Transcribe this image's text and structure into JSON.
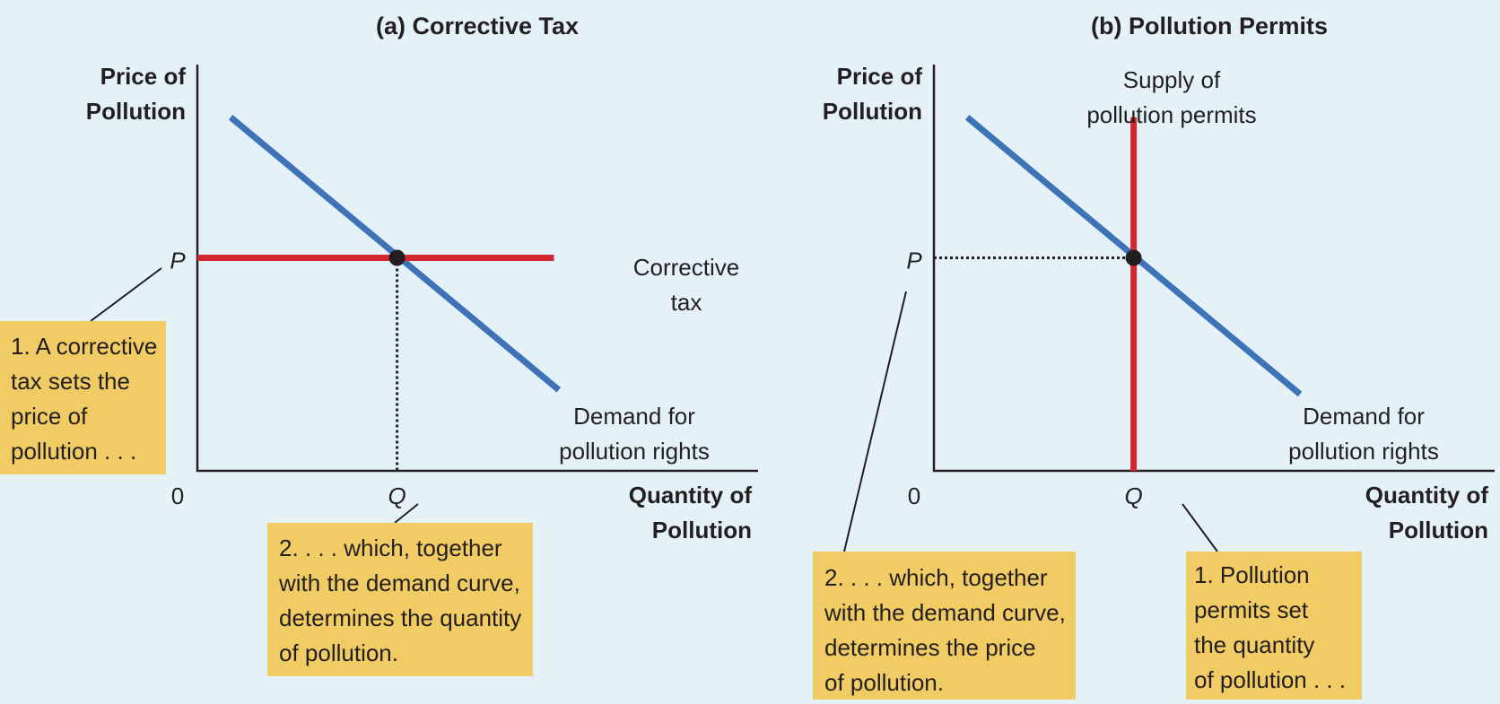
{
  "chart_data": [
    {
      "type": "line",
      "title": "(a) Corrective Tax",
      "ylabel": [
        "Price of",
        "Pollution"
      ],
      "xlabel": [
        "Quantity of",
        "Pollution"
      ],
      "origin_label": "0",
      "x_tick_label": "Q",
      "y_tick_label": "P",
      "xlim": [
        0,
        100
      ],
      "ylim": [
        0,
        100
      ],
      "series": [
        {
          "name": [
            "Demand for",
            "pollution rights"
          ],
          "x": [
            7,
            76
          ],
          "y": [
            83,
            19
          ],
          "color": "#3f73b8"
        },
        {
          "name": [
            "Corrective",
            "tax"
          ],
          "x": [
            0,
            75
          ],
          "y": [
            50,
            50
          ],
          "color": "#d22630"
        }
      ],
      "equilibrium": {
        "x": 42,
        "y": 50
      },
      "callouts": [
        {
          "lines": [
            "1.  A corrective",
            "tax sets the",
            "price of",
            "pollution . . ."
          ]
        },
        {
          "lines": [
            "2.  . . . which, together",
            "with the demand curve,",
            "determines the quantity",
            "of pollution."
          ]
        }
      ]
    },
    {
      "type": "line",
      "title": "(b) Pollution Permits",
      "ylabel": [
        "Price of",
        "Pollution"
      ],
      "xlabel": [
        "Quantity of",
        "Pollution"
      ],
      "origin_label": "0",
      "x_tick_label": "Q",
      "y_tick_label": "P",
      "xlim": [
        0,
        100
      ],
      "ylim": [
        0,
        100
      ],
      "series": [
        {
          "name": [
            "Demand for",
            "pollution rights"
          ],
          "x": [
            7,
            77
          ],
          "y": [
            83,
            18
          ],
          "color": "#3f73b8"
        },
        {
          "name": [
            "Supply of",
            "pollution permits"
          ],
          "x": [
            42,
            42
          ],
          "y": [
            0,
            83
          ],
          "color": "#d22630"
        }
      ],
      "equilibrium": {
        "x": 42,
        "y": 50
      },
      "callouts": [
        {
          "lines": [
            "2.  . . . which, together",
            "with the demand curve,",
            "determines the price",
            "of pollution."
          ]
        },
        {
          "lines": [
            "1.  Pollution",
            "permits set",
            "the quantity",
            "of pollution . . ."
          ]
        }
      ]
    }
  ]
}
